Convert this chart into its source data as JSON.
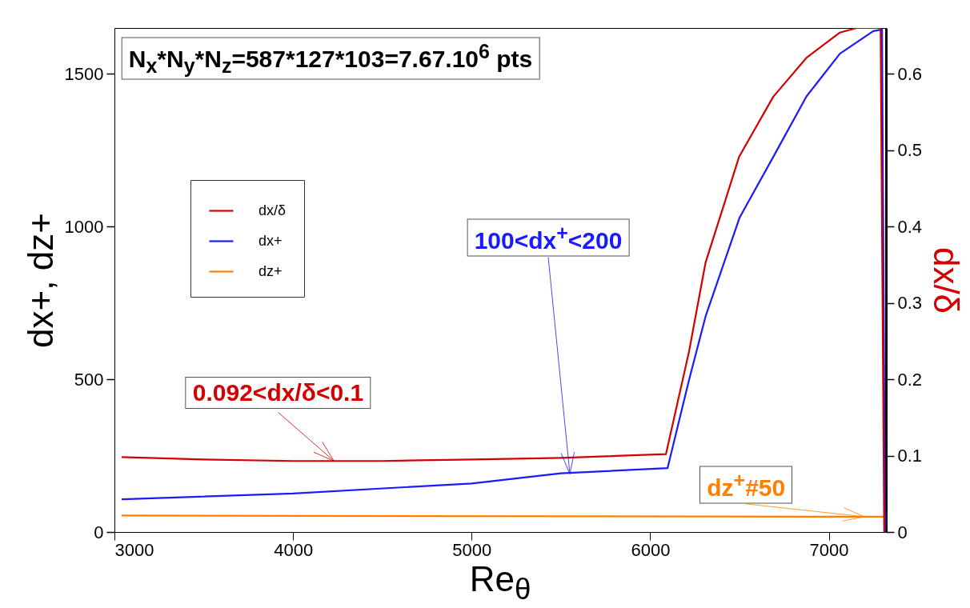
{
  "chart_data": {
    "type": "line",
    "xlabel": "Re$_{θ}$",
    "ylabel": "dx+, dz+",
    "y2label": "dx/δ",
    "xlim": [
      3000,
      7320
    ],
    "xticks": [
      3000,
      4000,
      5000,
      6000,
      7000
    ],
    "ylim": [
      0,
      1650
    ],
    "yticks": [
      0,
      500,
      1000,
      1500
    ],
    "y2lim": [
      0,
      0.66
    ],
    "y2ticks": [
      0,
      0.1,
      0.2,
      0.3,
      0.4,
      0.5,
      0.6
    ],
    "grid": false,
    "legend": "top left",
    "line_style": "solid",
    "marker": "none",
    "series": [
      {
        "name": "dx/δ",
        "color": "#d40000",
        "axis": "y2",
        "x": [
          3040,
          3500,
          4000,
          4500,
          5000,
          5500,
          6088,
          6217,
          6310,
          6404,
          6497,
          6689,
          6875,
          7062,
          7156,
          7290,
          7310
        ],
        "values": [
          0.098,
          0.095,
          0.093,
          0.093,
          0.095,
          0.097,
          0.102,
          0.236,
          0.353,
          0.422,
          0.491,
          0.57,
          0.621,
          0.654,
          0.66,
          0.66,
          0
        ]
      },
      {
        "name": "dx+",
        "color": "#1a1aff",
        "x": [
          3040,
          4000,
          5000,
          5500,
          6097,
          6217,
          6310,
          6501,
          6689,
          6875,
          7062,
          7249,
          7298,
          7315
        ],
        "values": [
          107,
          126,
          159,
          192,
          209,
          497,
          706,
          1030,
          1228,
          1426,
          1566,
          1640,
          1645,
          0
        ]
      },
      {
        "name": "dz+",
        "color": "#ff8000",
        "x": [
          3040,
          4650,
          7315
        ],
        "values": [
          54,
          52,
          50
        ]
      }
    ],
    "annotations": [
      "N$_{x}$*N$_{y}$*N$_{z}$=587*127*103=7.67.10$^{6}$ pts",
      {
        "text": "0.092<dx/δ<0.1",
        "x": 4230,
        "y": 232
      },
      {
        "text": "100<dx$^{+}$<200",
        "x": 5550,
        "y": 190
      },
      {
        "text": "dz$^{+}$#50",
        "x": 7200,
        "y": 50
      }
    ]
  }
}
